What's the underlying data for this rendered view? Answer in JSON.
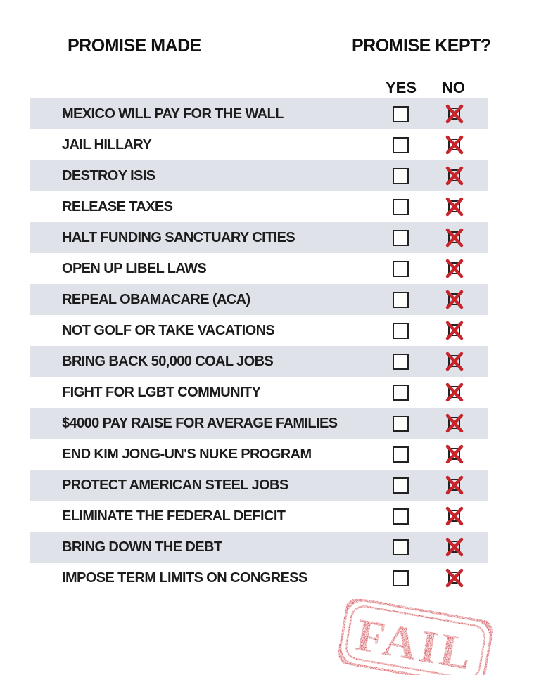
{
  "header": {
    "promise_made": "PROMISE MADE",
    "promise_kept": "PROMISE KEPT?",
    "yes": "YES",
    "no": "NO"
  },
  "promises": [
    {
      "text": "MEXICO WILL PAY FOR THE WALL",
      "kept": false
    },
    {
      "text": "JAIL HILLARY",
      "kept": false
    },
    {
      "text": "DESTROY ISIS",
      "kept": false
    },
    {
      "text": "RELEASE TAXES",
      "kept": false
    },
    {
      "text": "HALT FUNDING SANCTUARY CITIES",
      "kept": false
    },
    {
      "text": "OPEN UP LIBEL LAWS",
      "kept": false
    },
    {
      "text": "REPEAL OBAMACARE (ACA)",
      "kept": false
    },
    {
      "text": "NOT GOLF OR TAKE VACATIONS",
      "kept": false
    },
    {
      "text": "BRING BACK 50,000 COAL JOBS",
      "kept": false
    },
    {
      "text": "FIGHT FOR LGBT COMMUNITY",
      "kept": false
    },
    {
      "text": "$4000 PAY RAISE FOR AVERAGE FAMILIES",
      "kept": false
    },
    {
      "text": "END KIM JONG-UN'S NUKE PROGRAM",
      "kept": false
    },
    {
      "text": "PROTECT AMERICAN STEEL JOBS",
      "kept": false
    },
    {
      "text": "ELIMINATE THE FEDERAL DEFICIT",
      "kept": false
    },
    {
      "text": "BRING DOWN THE DEBT",
      "kept": false
    },
    {
      "text": "IMPOSE TERM LIMITS ON CONGRESS",
      "kept": false
    }
  ],
  "stamp": {
    "text": "FAIL",
    "color": "#c8242b"
  },
  "colors": {
    "row_shade": "#dfe2e8",
    "check_red": "#c8242b"
  }
}
